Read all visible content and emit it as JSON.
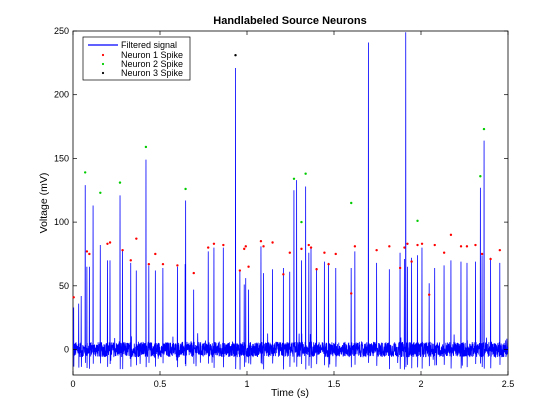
{
  "chart_data": {
    "type": "line",
    "title": "Handlabeled Source Neurons",
    "xlabel": "Time (s)",
    "ylabel": "Voltage (mV)",
    "xlim": [
      0,
      2.5
    ],
    "ylim": [
      -20,
      250
    ],
    "xticks": [
      0,
      0.5,
      1,
      1.5,
      2,
      2.5
    ],
    "xtick_labels": [
      "0",
      "0.5",
      "1",
      "1.5",
      "2",
      "2.5"
    ],
    "yticks": [
      0,
      50,
      100,
      150,
      200,
      250
    ],
    "ytick_labels": [
      "0",
      "50",
      "100",
      "150",
      "200",
      "250"
    ],
    "grid": false,
    "legend_position": "top-left",
    "legend": [
      "Filtered signal",
      "Neuron 1 Spike",
      "Neuron 2 Spike",
      "Neuron 3 Spike"
    ],
    "colors": {
      "signal": "#0000ff",
      "neuron1": "#ff0000",
      "neuron2": "#00cc00",
      "neuron3": "#000000",
      "axes": "#000000"
    },
    "noise_amplitude_mv": 6,
    "signal_spikes": {
      "x": [
        0.004,
        0.033,
        0.047,
        0.07,
        0.08,
        0.094,
        0.115,
        0.157,
        0.198,
        0.213,
        0.27,
        0.285,
        0.332,
        0.364,
        0.419,
        0.436,
        0.473,
        0.517,
        0.6,
        0.644,
        0.647,
        0.694,
        0.777,
        0.81,
        0.864,
        0.934,
        0.959,
        0.984,
        0.993,
        1.009,
        1.08,
        1.095,
        1.147,
        1.209,
        1.246,
        1.27,
        1.285,
        1.313,
        1.337,
        1.355,
        1.368,
        1.4,
        1.445,
        1.469,
        1.51,
        1.599,
        1.62,
        1.698,
        1.745,
        1.818,
        1.88,
        1.905,
        1.912,
        1.922,
        1.946,
        1.98,
        2.006,
        2.047,
        2.079,
        2.133,
        2.172,
        2.23,
        2.264,
        2.313,
        2.341,
        2.351,
        2.362,
        2.4,
        2.453
      ],
      "y": [
        33,
        36,
        42,
        129,
        65,
        65,
        113,
        82,
        70,
        70,
        121,
        78,
        68,
        62,
        149,
        66,
        62,
        64,
        65,
        67,
        117,
        47,
        77,
        80,
        80,
        221,
        62,
        51,
        56,
        47,
        81,
        60,
        63,
        64,
        61,
        125,
        133,
        70,
        128,
        76,
        80,
        64,
        69,
        68,
        64,
        64,
        77,
        241,
        68,
        63,
        76,
        71,
        249,
        65,
        72,
        74,
        80,
        52,
        64,
        66,
        70,
        69,
        68,
        69,
        127,
        74,
        164,
        72,
        68
      ]
    },
    "neuron1_spikes": {
      "x": [
        0.004,
        0.08,
        0.094,
        0.198,
        0.213,
        0.285,
        0.332,
        0.364,
        0.436,
        0.473,
        0.517,
        0.6,
        0.694,
        0.777,
        0.81,
        0.864,
        0.959,
        0.984,
        0.993,
        1.009,
        1.08,
        1.095,
        1.147,
        1.209,
        1.246,
        1.313,
        1.355,
        1.368,
        1.4,
        1.445,
        1.469,
        1.51,
        1.599,
        1.62,
        1.745,
        1.818,
        1.88,
        1.905,
        1.922,
        1.946,
        1.98,
        2.006,
        2.047,
        2.079,
        2.133,
        2.172,
        2.23,
        2.264,
        2.313,
        2.351,
        2.4,
        2.453
      ],
      "y": [
        41,
        77,
        75,
        83,
        84,
        78,
        70,
        87,
        67,
        75,
        67,
        66,
        60,
        80,
        83,
        82,
        62,
        79,
        81,
        65,
        85,
        81,
        84,
        59,
        76,
        79,
        82,
        80,
        63,
        76,
        67,
        75,
        44,
        81,
        78,
        81,
        64,
        80,
        83,
        69,
        82,
        83,
        43,
        82,
        76,
        90,
        81,
        81,
        82,
        75,
        71,
        78
      ]
    },
    "neuron2_spikes": {
      "x": [
        0.07,
        0.157,
        0.27,
        0.419,
        0.647,
        1.27,
        1.313,
        1.337,
        1.599,
        1.98,
        2.341,
        2.362
      ],
      "y": [
        139,
        123,
        131,
        159,
        126,
        134,
        100,
        138,
        115,
        101,
        136,
        173
      ]
    },
    "neuron3_spikes": {
      "x": [
        0.934
      ],
      "y": [
        231
      ]
    }
  }
}
